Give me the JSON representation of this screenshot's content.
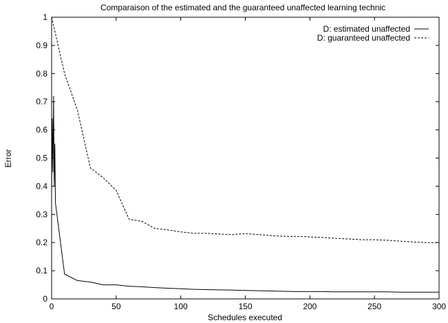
{
  "chart_data": {
    "type": "line",
    "title": "Comparaison of the estimated and the guaranteed unaffected learning technic",
    "xlabel": "Schedules executed",
    "ylabel": "Error",
    "xlim": [
      0,
      300
    ],
    "ylim": [
      0,
      1
    ],
    "xticks": [
      0,
      50,
      100,
      150,
      200,
      250,
      300
    ],
    "yticks": [
      0,
      0.1,
      0.2,
      0.3,
      0.4,
      0.5,
      0.6,
      0.7,
      0.8,
      0.9,
      1
    ],
    "xtick_labels": [
      "0",
      "50",
      "100",
      "150",
      "200",
      "250",
      "300"
    ],
    "ytick_labels": [
      "0",
      "0.1",
      "0.2",
      "0.3",
      "0.4",
      "0.5",
      "0.6",
      "0.7",
      "0.8",
      "0.9",
      "1"
    ],
    "grid": false,
    "legend_position": "top-right",
    "series": [
      {
        "name": "D: estimated unaffected",
        "style": "solid",
        "color": "#000000",
        "x": [
          0,
          0.5,
          1,
          1.5,
          2,
          2.5,
          3,
          10,
          20,
          30,
          40,
          50,
          60,
          70,
          80,
          90,
          100,
          110,
          120,
          130,
          140,
          150,
          160,
          170,
          180,
          190,
          200,
          210,
          220,
          230,
          240,
          250,
          260,
          270,
          280,
          290,
          300
        ],
        "y": [
          0.37,
          0.64,
          0.45,
          0.72,
          0.4,
          0.55,
          0.34,
          0.088,
          0.065,
          0.06,
          0.05,
          0.05,
          0.045,
          0.043,
          0.04,
          0.038,
          0.036,
          0.034,
          0.033,
          0.032,
          0.031,
          0.03,
          0.029,
          0.028,
          0.027,
          0.026,
          0.026,
          0.026,
          0.025,
          0.025,
          0.025,
          0.025,
          0.025,
          0.024,
          0.024,
          0.024,
          0.024
        ]
      },
      {
        "name": "D: guaranteed unaffected",
        "style": "dashed",
        "color": "#000000",
        "x": [
          0,
          10,
          20,
          30,
          40,
          50,
          60,
          70,
          80,
          90,
          100,
          110,
          120,
          130,
          140,
          150,
          160,
          170,
          180,
          190,
          200,
          210,
          220,
          230,
          240,
          250,
          260,
          270,
          280,
          290,
          300
        ],
        "y": [
          1.0,
          0.8,
          0.67,
          0.465,
          0.43,
          0.385,
          0.283,
          0.275,
          0.25,
          0.245,
          0.238,
          0.233,
          0.233,
          0.23,
          0.228,
          0.232,
          0.228,
          0.225,
          0.222,
          0.222,
          0.22,
          0.218,
          0.215,
          0.213,
          0.21,
          0.21,
          0.208,
          0.205,
          0.202,
          0.2,
          0.2
        ]
      }
    ]
  }
}
